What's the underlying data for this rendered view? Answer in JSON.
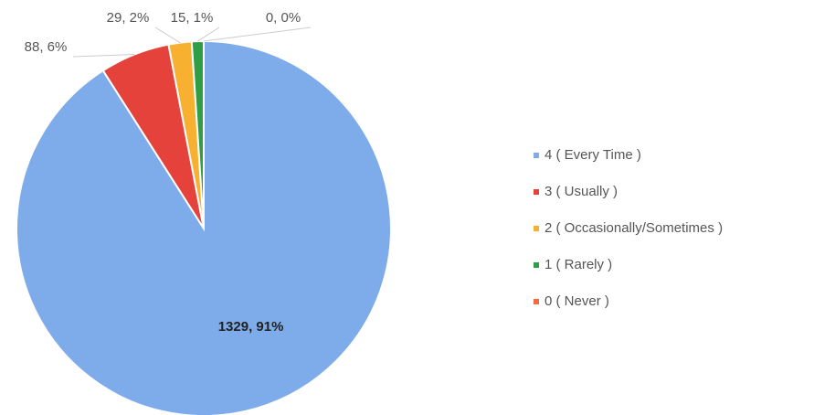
{
  "chart_data": {
    "type": "pie",
    "categories": [
      "4 ( Every Time )",
      "3 ( Usually )",
      "2 ( Occasionally/Sometimes )",
      "1 ( Rarely  )",
      "0 ( Never )"
    ],
    "values": [
      1329,
      88,
      29,
      15,
      0
    ],
    "value_labels": [
      "1329, 91%",
      "88, 6%",
      "29, 2%",
      "15, 1%",
      "0, 0%"
    ],
    "colors": [
      "#7eabe9",
      "#e5423b",
      "#f8b030",
      "#2f9e44",
      "#f26b3c"
    ],
    "legend": "right"
  }
}
